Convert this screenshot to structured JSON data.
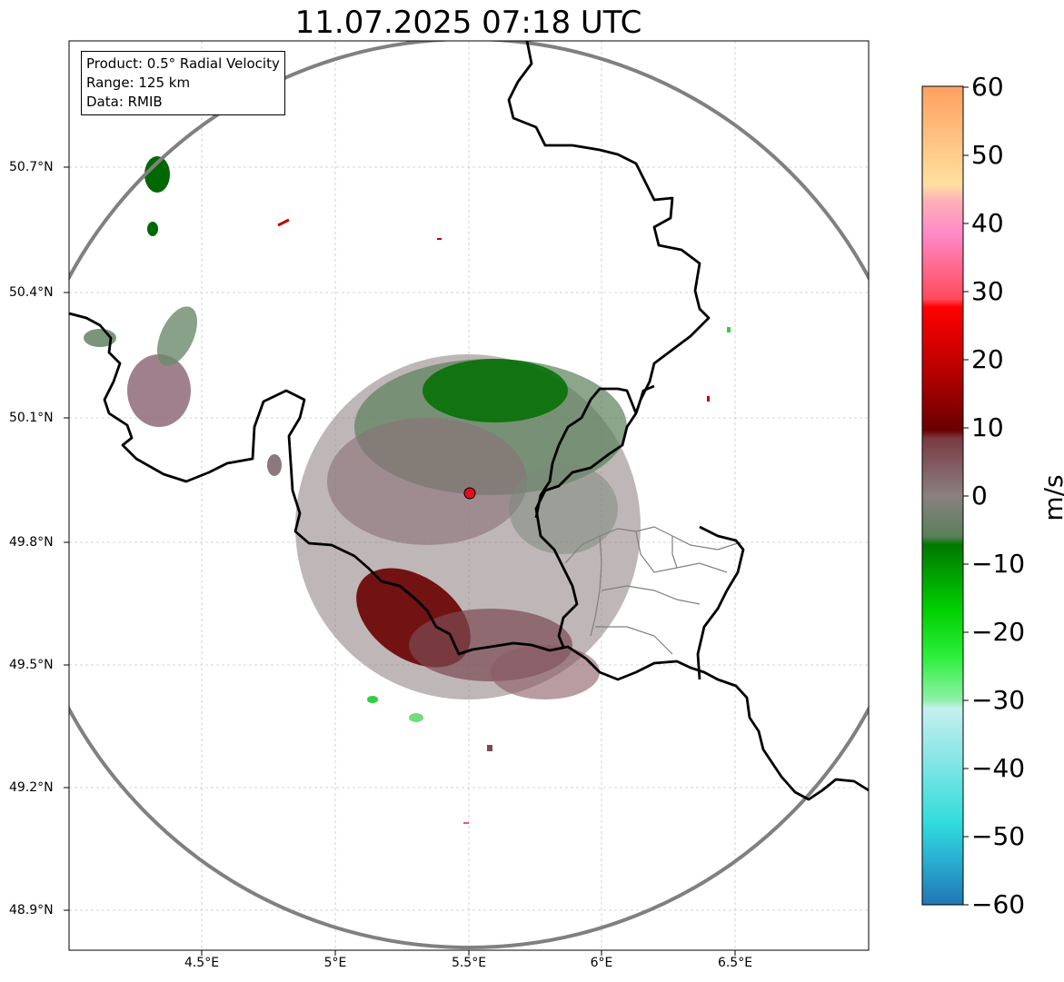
{
  "title": "11.07.2025 07:18 UTC",
  "info_box": {
    "product": "Product: 0.5° Radial Velocity",
    "range": "Range: 125 km",
    "source": "Data: RMIB"
  },
  "lat_ticks": [
    "50.7°N",
    "50.4°N",
    "50.1°N",
    "49.8°N",
    "49.5°N",
    "49.2°N",
    "48.9°N"
  ],
  "lon_ticks": [
    "4.5°E",
    "5°E",
    "5.5°E",
    "6°E",
    "6.5°E"
  ],
  "colorbar": {
    "unit": "m/s",
    "ticks": [
      "60",
      "50",
      "40",
      "30",
      "20",
      "10",
      "0",
      "−10",
      "−20",
      "−30",
      "−40",
      "−50",
      "−60"
    ],
    "min": -60,
    "max": 60
  },
  "colors": {
    "range_ring": "#808080",
    "border": "#000000",
    "region_border": "#808080",
    "radar_site": "#e0101a",
    "grid": "#c8c8c8"
  },
  "radar_site": {
    "lon": 5.505,
    "lat": 49.914
  }
}
